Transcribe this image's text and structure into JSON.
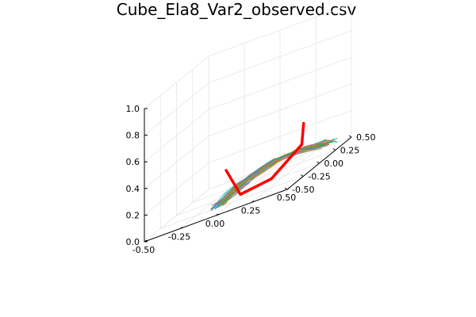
{
  "chart_data": {
    "type": "line",
    "title": "Cube_Ela8_Var2_observed.csv",
    "projection": "3d",
    "grid": true,
    "legend": "none",
    "axes": {
      "x": {
        "ticks": [
          "-0.50",
          "-0.25",
          "0.00",
          "0.25",
          "0.50"
        ],
        "range": [
          -0.5,
          0.5
        ]
      },
      "y": {
        "ticks": [
          "-0.50",
          "-0.25",
          "0.00",
          "0.25",
          "0.50"
        ],
        "range": [
          -0.5,
          0.5
        ]
      },
      "z": {
        "ticks": [
          "0.0",
          "0.2",
          "0.4",
          "0.6",
          "0.8",
          "1.0"
        ],
        "range": [
          0,
          1
        ]
      }
    },
    "highlight_series": {
      "color": "#ff0000",
      "points": [
        [
          0.05,
          -0.45,
          0.3
        ],
        [
          0.15,
          -0.45,
          0.08
        ],
        [
          0.3,
          -0.3,
          0.08
        ],
        [
          0.4,
          -0.05,
          0.2
        ],
        [
          0.3,
          0.2,
          0.3
        ]
      ]
    },
    "background_series": {
      "count": 30,
      "colors": [
        "#009AFA",
        "#E36F47",
        "#3EA44E",
        "#C371D2",
        "#AC8D18",
        "#00A9AD",
        "#ED5E93",
        "#C68225",
        "#00A98D",
        "#8E971E"
      ]
    }
  }
}
